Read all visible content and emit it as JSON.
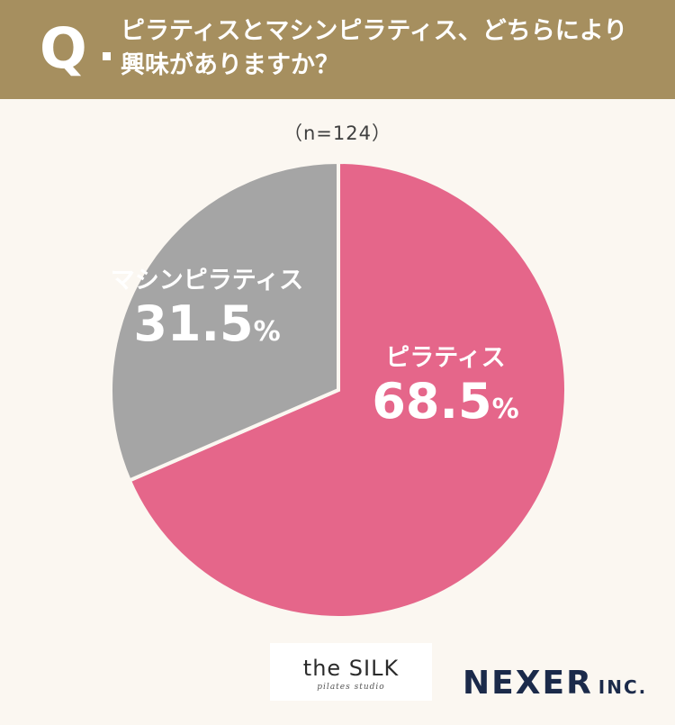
{
  "header": {
    "q_mark": "Q",
    "question_line1": "ピラティスとマシンピラティス、どちらにより",
    "question_line2": "興味がありますか？"
  },
  "sample_size": "（n=124）",
  "chart_data": {
    "type": "pie",
    "title": "",
    "slices": [
      {
        "label": "ピラティス",
        "value": 68.5,
        "display": "68.5",
        "color": "#e5668a"
      },
      {
        "label": "マシンピラティス",
        "value": 31.5,
        "display": "31.5",
        "color": "#a5a5a5"
      }
    ],
    "unit": "%",
    "start": "12 o'clock, clockwise"
  },
  "logos": {
    "silk_main": "the SILK",
    "silk_sub": "pilates studio",
    "nexer_main": "NEXER",
    "nexer_inc": "INC."
  }
}
